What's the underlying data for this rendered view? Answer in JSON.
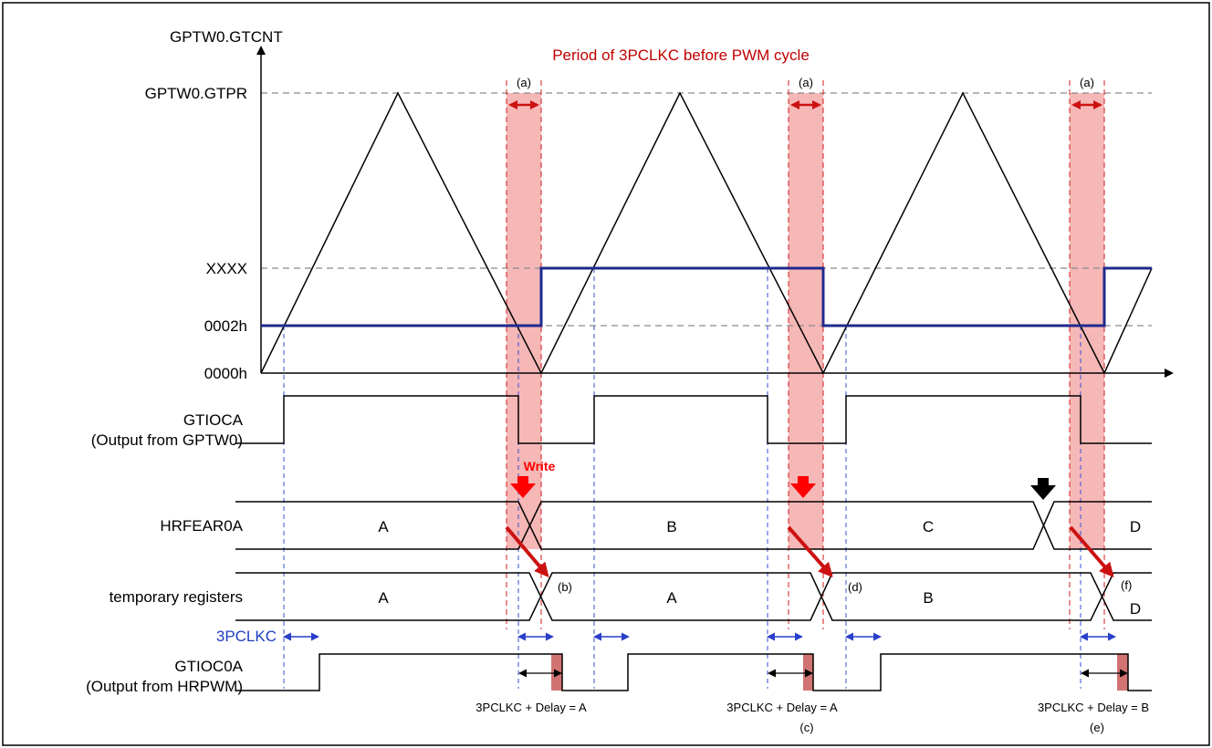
{
  "colors": {
    "frame": "#000000",
    "triangle": "#000000",
    "threshold": "#1f2a8c",
    "highlight": "#f4aaaa",
    "guide_red": "#d21e1e",
    "guide_blue": "#3a4fd6",
    "arrow_red": "#cc1111",
    "write_red": "#ff0000",
    "pulse_fill": "#d27373"
  },
  "axis": {
    "title": "GPTW0.GTCNT",
    "y_levels": [
      "GPTW0.GTPR",
      "XXXX",
      "0002h",
      "0000h"
    ]
  },
  "annotations": {
    "period_note": "Period of 3PCLKC before PWM cycle",
    "window_marks": [
      "(a)",
      "(a)",
      "(a)"
    ],
    "write_label": "Write",
    "markers": [
      "(b)",
      "(c)",
      "(d)",
      "(e)",
      "(f)"
    ],
    "pclkc_label": "3PCLKC",
    "delay_notes": [
      "3PCLKC + Delay = A",
      "3PCLKC + Delay = A",
      "3PCLKC + Delay = B"
    ]
  },
  "signals": {
    "gtioca": {
      "name": "GTIOCA",
      "sub": "(Output from GPTW0)"
    },
    "hrfear": {
      "name": "HRFEAR0A",
      "values": [
        "A",
        "B",
        "C",
        "D"
      ]
    },
    "temp": {
      "name": "temporary registers",
      "values": [
        "A",
        "A",
        "B",
        "D"
      ]
    },
    "gtioc0a": {
      "name": "GTIOC0A",
      "sub": "(Output from HRPWM)"
    }
  }
}
